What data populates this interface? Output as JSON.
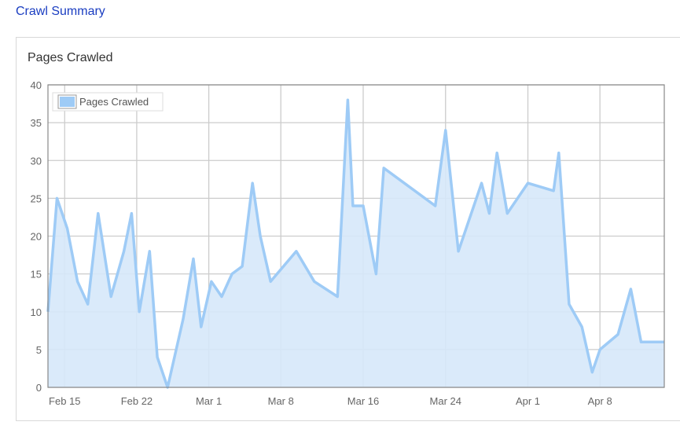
{
  "header": {
    "link_label": "Crawl Summary"
  },
  "panel": {
    "title": "Pages Crawled"
  },
  "chart_data": {
    "type": "area",
    "title": "Pages Crawled",
    "xlabel": "",
    "ylabel": "",
    "ylim": [
      0,
      40
    ],
    "yticks": [
      "0",
      "5",
      "10",
      "15",
      "20",
      "25",
      "30",
      "35",
      "40"
    ],
    "xlim": [
      "Feb 13 09:00",
      "Apr 14 06:00"
    ],
    "xticks": [
      {
        "label": "Feb 15",
        "date": "Feb 15"
      },
      {
        "label": "Feb 22",
        "date": "Feb 22"
      },
      {
        "label": "Mar 1",
        "date": "Mar 1"
      },
      {
        "label": "Mar 8",
        "date": "Mar 8"
      },
      {
        "label": "Mar 16",
        "date": "Mar 16"
      },
      {
        "label": "Mar 24",
        "date": "Mar 24"
      },
      {
        "label": "Apr 1",
        "date": "Apr 1"
      },
      {
        "label": "Apr 8",
        "date": "Apr 8"
      }
    ],
    "grid": true,
    "legend_position": "top-left",
    "colors": {
      "line": "#9ecbf6",
      "fill": "#d6e8f9",
      "grid": "#cccccc",
      "axis": "#888888"
    },
    "series": [
      {
        "name": "Pages Crawled",
        "points": [
          [
            "Feb 13 09:00",
            10
          ],
          [
            "Feb 14 06:00",
            25
          ],
          [
            "Feb 15 06:00",
            21
          ],
          [
            "Feb 16 06:00",
            14
          ],
          [
            "Feb 17 06:00",
            11
          ],
          [
            "Feb 18 06:00",
            23
          ],
          [
            "Feb 19 12:00",
            12
          ],
          [
            "Feb 20 18:00",
            18
          ],
          [
            "Feb 21 12:00",
            23
          ],
          [
            "Feb 22 06:00",
            10
          ],
          [
            "Feb 23 06:00",
            18
          ],
          [
            "Feb 24 00:00",
            4
          ],
          [
            "Feb 25 00:00",
            0
          ],
          [
            "Feb 26 12:00",
            9
          ],
          [
            "Feb 27 12:00",
            17
          ],
          [
            "Feb 28 06:00",
            8
          ],
          [
            "Mar 1 06:00",
            14
          ],
          [
            "Mar 2 06:00",
            12
          ],
          [
            "Mar 3 06:00",
            15
          ],
          [
            "Mar 4 06:00",
            16
          ],
          [
            "Mar 5 06:00",
            27
          ],
          [
            "Mar 6 00:00",
            20
          ],
          [
            "Mar 7 00:00",
            14
          ],
          [
            "Mar 9 12:00",
            18
          ],
          [
            "Mar 11 06:00",
            14
          ],
          [
            "Mar 13 12:00",
            12
          ],
          [
            "Mar 14 12:00",
            38
          ],
          [
            "Mar 15 00:00",
            24
          ],
          [
            "Mar 16 00:00",
            24
          ],
          [
            "Mar 17 06:00",
            15
          ],
          [
            "Mar 18 00:00",
            29
          ],
          [
            "Mar 23 00:00",
            24
          ],
          [
            "Mar 24 00:00",
            34
          ],
          [
            "Mar 25 06:00",
            18
          ],
          [
            "Mar 27 12:00",
            27
          ],
          [
            "Mar 28 06:00",
            23
          ],
          [
            "Mar 29 00:00",
            31
          ],
          [
            "Mar 30 00:00",
            23
          ],
          [
            "Apr 1 00:00",
            27
          ],
          [
            "Apr 3 12:00",
            26
          ],
          [
            "Apr 4 00:00",
            31
          ],
          [
            "Apr 5 00:00",
            11
          ],
          [
            "Apr 6 06:00",
            8
          ],
          [
            "Apr 7 06:00",
            2
          ],
          [
            "Apr 8 00:00",
            5
          ],
          [
            "Apr 9 18:00",
            7
          ],
          [
            "Apr 11 00:00",
            13
          ],
          [
            "Apr 12 00:00",
            6
          ],
          [
            "Apr 14 06:00",
            6
          ]
        ]
      }
    ]
  }
}
